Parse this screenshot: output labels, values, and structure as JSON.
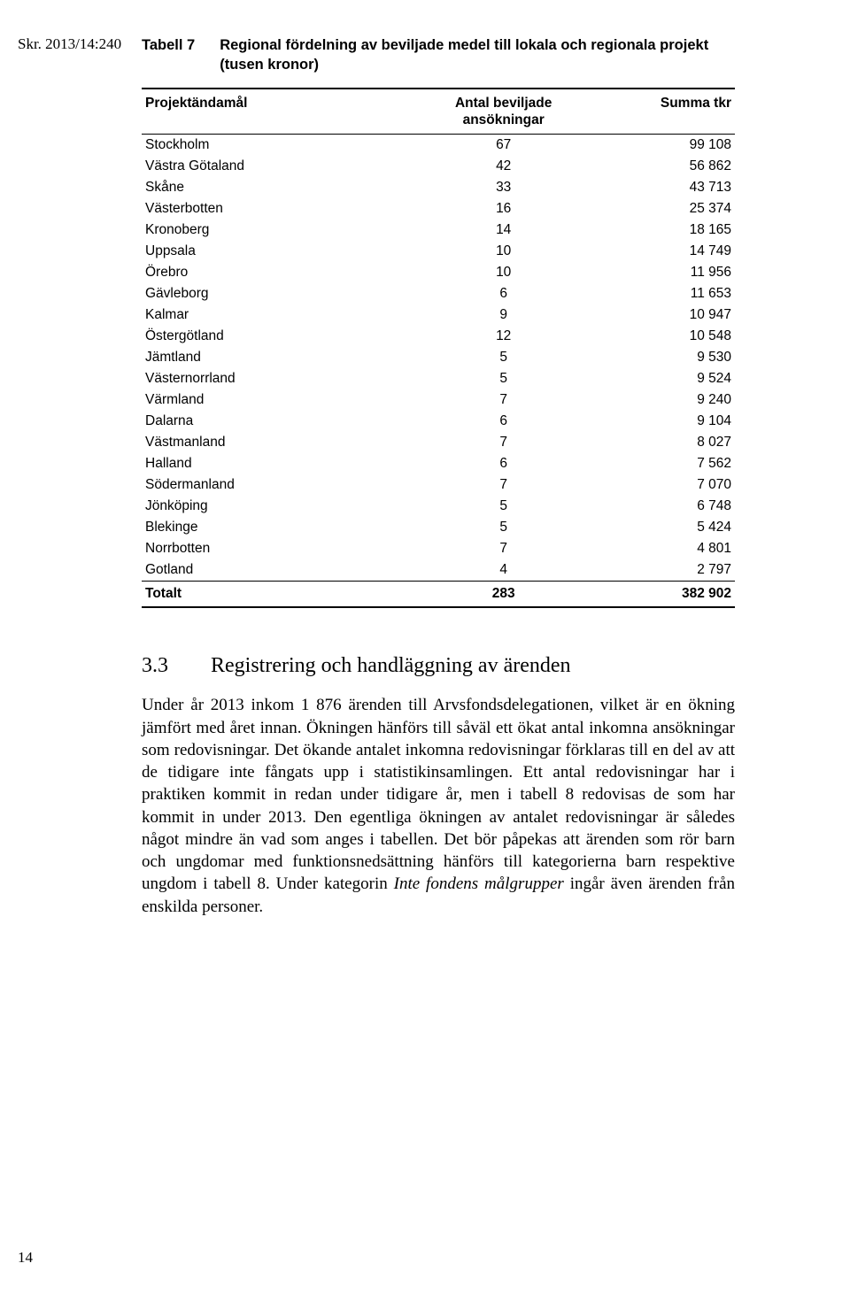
{
  "doc_id": "Skr. 2013/14:240",
  "table": {
    "caption_label": "Tabell 7",
    "caption_title": "Regional fördelning av beviljade medel till lokala och regionala projekt (tusen kronor)",
    "columns": {
      "name": "Projektändamål",
      "count_line1": "Antal beviljade",
      "count_line2": "ansökningar",
      "sum": "Summa tkr"
    },
    "rows": [
      {
        "name": "Stockholm",
        "count": "67",
        "sum": "99 108"
      },
      {
        "name": "Västra Götaland",
        "count": "42",
        "sum": "56 862"
      },
      {
        "name": "Skåne",
        "count": "33",
        "sum": "43 713"
      },
      {
        "name": "Västerbotten",
        "count": "16",
        "sum": "25 374"
      },
      {
        "name": "Kronoberg",
        "count": "14",
        "sum": "18 165"
      },
      {
        "name": "Uppsala",
        "count": "10",
        "sum": "14 749"
      },
      {
        "name": "Örebro",
        "count": "10",
        "sum": "11 956"
      },
      {
        "name": "Gävleborg",
        "count": "6",
        "sum": "11 653"
      },
      {
        "name": "Kalmar",
        "count": "9",
        "sum": "10 947"
      },
      {
        "name": "Östergötland",
        "count": "12",
        "sum": "10 548"
      },
      {
        "name": "Jämtland",
        "count": "5",
        "sum": "9 530"
      },
      {
        "name": "Västernorrland",
        "count": "5",
        "sum": "9 524"
      },
      {
        "name": "Värmland",
        "count": "7",
        "sum": "9 240"
      },
      {
        "name": "Dalarna",
        "count": "6",
        "sum": "9 104"
      },
      {
        "name": "Västmanland",
        "count": "7",
        "sum": "8 027"
      },
      {
        "name": "Halland",
        "count": "6",
        "sum": "7 562"
      },
      {
        "name": "Södermanland",
        "count": "7",
        "sum": "7 070"
      },
      {
        "name": "Jönköping",
        "count": "5",
        "sum": "6 748"
      },
      {
        "name": "Blekinge",
        "count": "5",
        "sum": "5 424"
      },
      {
        "name": "Norrbotten",
        "count": "7",
        "sum": "4 801"
      },
      {
        "name": "Gotland",
        "count": "4",
        "sum": "2 797"
      }
    ],
    "total": {
      "name": "Totalt",
      "count": "283",
      "sum": "382 902"
    }
  },
  "section": {
    "number": "3.3",
    "title": "Registrering och handläggning av ärenden"
  },
  "paragraph": {
    "t1": "Under år 2013 inkom 1 876 ärenden till Arvsfondsdelegationen, vilket är en ökning jämfört med året innan. Ökningen hänförs till såväl ett ökat antal inkomna ansökningar som redovisningar. Det ökande antalet in­komna redovisningar förklaras till en del av att de tidigare inte fångats upp i statistikinsamlingen. Ett antal redovisningar har i praktiken kommit in redan under tidigare år, men i tabell 8 redovisas de som har kommit in under 2013. Den egentliga ökningen av antalet redovisningar är således något mindre än vad som anges i tabellen. Det bör påpekas att ärenden som rör barn och ungdomar med funktionsnedsättning hänförs till kategorierna barn respektive ungdom i tabell 8. Under kategorin ",
    "italic": "Inte fondens målgrupper",
    "t2": " ingår även ärenden från enskilda personer."
  },
  "page_number": "14"
}
